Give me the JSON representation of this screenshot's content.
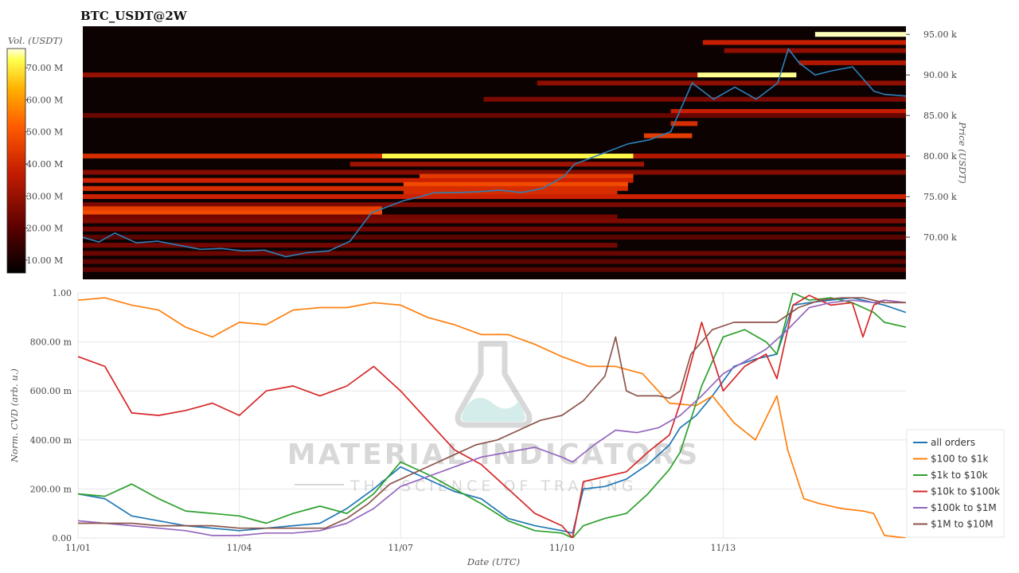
{
  "chart_data": [
    {
      "type": "heatmap",
      "title": "BTC_USDT@2W",
      "colorbar": {
        "label": "Vol. (USDT)",
        "ticks": [
          "70.00 M",
          "60.00 M",
          "50.00 M",
          "40.00 M",
          "30.00 M",
          "20.00 M",
          "10.00 M"
        ],
        "tick_values": [
          70,
          60,
          50,
          40,
          30,
          20,
          10
        ],
        "range": [
          6,
          76
        ]
      },
      "ylabel": "Price (USDT)",
      "yticks": [
        "95.00 k",
        "90.00 k",
        "85.00 k",
        "80.00 k",
        "75.00 k",
        "70.00 k"
      ],
      "ytick_values": [
        95,
        90,
        85,
        80,
        75,
        70
      ],
      "ylim": [
        64.8,
        96.0
      ],
      "price_line": {
        "color": "#2c7fb8",
        "x": [
          0,
          0.3,
          0.6,
          1.0,
          1.4,
          1.8,
          2.2,
          2.6,
          3.0,
          3.4,
          3.8,
          4.2,
          4.6,
          5.0,
          5.4,
          5.8,
          6.0,
          6.2,
          6.6,
          7.0,
          7.4,
          7.8,
          8.2,
          8.6,
          9.0,
          9.2,
          9.4,
          9.8,
          10.2,
          10.6,
          11.0,
          11.2,
          11.4,
          11.6,
          11.8,
          12.2,
          12.6,
          13.0,
          13.2,
          13.4,
          13.7,
          14.0,
          14.4,
          14.8,
          15.0,
          15.4
        ],
        "y": [
          70.0,
          69.4,
          70.5,
          69.3,
          69.5,
          69.0,
          68.5,
          68.6,
          68.3,
          68.4,
          67.6,
          68.1,
          68.3,
          69.5,
          73.0,
          74.0,
          74.5,
          74.8,
          75.5,
          75.5,
          75.6,
          75.8,
          75.5,
          76.0,
          77.5,
          79.0,
          79.5,
          80.5,
          81.5,
          82.0,
          83.0,
          86.0,
          89.0,
          88.0,
          87.0,
          88.5,
          87.0,
          89.0,
          93.2,
          91.5,
          90.0,
          90.5,
          91.0,
          88.0,
          87.6,
          87.4
        ]
      },
      "liquidity_bands": [
        {
          "price": 95.0,
          "x0": 13.7,
          "x1": 15.4,
          "intensity": 0.98
        },
        {
          "price": 94.0,
          "x0": 11.6,
          "x1": 15.4,
          "intensity": 0.45
        },
        {
          "price": 93.0,
          "x0": 12.0,
          "x1": 15.4,
          "intensity": 0.32
        },
        {
          "price": 91.5,
          "x0": 13.4,
          "x1": 15.4,
          "intensity": 0.4
        },
        {
          "price": 90.0,
          "x0": 0.0,
          "x1": 11.5,
          "intensity": 0.34
        },
        {
          "price": 90.0,
          "x0": 11.5,
          "x1": 13.35,
          "intensity": 0.96
        },
        {
          "price": 89.0,
          "x0": 8.5,
          "x1": 15.4,
          "intensity": 0.32
        },
        {
          "price": 87.0,
          "x0": 7.5,
          "x1": 15.4,
          "intensity": 0.28
        },
        {
          "price": 85.5,
          "x0": 11.0,
          "x1": 15.4,
          "intensity": 0.45
        },
        {
          "price": 85.0,
          "x0": 0.0,
          "x1": 15.4,
          "intensity": 0.24
        },
        {
          "price": 84.0,
          "x0": 11.0,
          "x1": 11.5,
          "intensity": 0.5
        },
        {
          "price": 82.5,
          "x0": 10.5,
          "x1": 11.4,
          "intensity": 0.55
        },
        {
          "price": 80.0,
          "x0": 0.0,
          "x1": 5.6,
          "intensity": 0.5
        },
        {
          "price": 80.0,
          "x0": 5.6,
          "x1": 10.3,
          "intensity": 0.92
        },
        {
          "price": 80.0,
          "x0": 10.3,
          "x1": 15.4,
          "intensity": 0.4
        },
        {
          "price": 79.0,
          "x0": 5.0,
          "x1": 10.5,
          "intensity": 0.36
        },
        {
          "price": 78.0,
          "x0": 0.0,
          "x1": 15.4,
          "intensity": 0.3
        },
        {
          "price": 77.5,
          "x0": 6.3,
          "x1": 10.3,
          "intensity": 0.55
        },
        {
          "price": 77.0,
          "x0": 0.0,
          "x1": 10.3,
          "intensity": 0.46
        },
        {
          "price": 76.5,
          "x0": 6.0,
          "x1": 10.2,
          "intensity": 0.6
        },
        {
          "price": 76.0,
          "x0": 0.0,
          "x1": 10.2,
          "intensity": 0.5
        },
        {
          "price": 75.5,
          "x0": 6.0,
          "x1": 10.0,
          "intensity": 0.5
        },
        {
          "price": 75.0,
          "x0": 0.0,
          "x1": 15.4,
          "intensity": 0.46
        },
        {
          "price": 74.0,
          "x0": 0.0,
          "x1": 15.4,
          "intensity": 0.28
        },
        {
          "price": 73.5,
          "x0": 0.0,
          "x1": 5.6,
          "intensity": 0.56
        },
        {
          "price": 73.0,
          "x0": 0.0,
          "x1": 5.6,
          "intensity": 0.6
        },
        {
          "price": 72.5,
          "x0": 0.0,
          "x1": 10.0,
          "intensity": 0.26
        },
        {
          "price": 72.0,
          "x0": 0.0,
          "x1": 15.4,
          "intensity": 0.28
        },
        {
          "price": 71.0,
          "x0": 0.0,
          "x1": 15.4,
          "intensity": 0.26
        },
        {
          "price": 70.0,
          "x0": 0.0,
          "x1": 15.4,
          "intensity": 0.2
        },
        {
          "price": 69.0,
          "x0": 0.0,
          "x1": 10.0,
          "intensity": 0.26
        },
        {
          "price": 68.0,
          "x0": 0.0,
          "x1": 15.4,
          "intensity": 0.24
        },
        {
          "price": 67.0,
          "x0": 0.0,
          "x1": 15.4,
          "intensity": 0.2
        },
        {
          "price": 66.0,
          "x0": 0.0,
          "x1": 15.4,
          "intensity": 0.2
        }
      ]
    },
    {
      "type": "line",
      "xlabel": "Date (UTC)",
      "ylabel": "Norm. CVD (arb. u.)",
      "xticks": [
        "11/01",
        "11/04",
        "11/07",
        "11/10",
        "11/13"
      ],
      "xtick_values": [
        0,
        3,
        6,
        9,
        12
      ],
      "xlim": [
        0,
        15.4
      ],
      "yticks": [
        "1.00",
        "800.00 m",
        "600.00 m",
        "400.00 m",
        "200.00 m",
        "0.00"
      ],
      "ytick_values": [
        1.0,
        0.8,
        0.6,
        0.4,
        0.2,
        0.0
      ],
      "ylim": [
        0,
        1
      ],
      "series": [
        {
          "name": "all orders",
          "color": "#1f77b4",
          "x": [
            0,
            0.5,
            1.0,
            1.5,
            2.0,
            2.5,
            3.0,
            3.5,
            4.0,
            4.5,
            5.0,
            5.5,
            6.0,
            6.5,
            7.0,
            7.5,
            8.0,
            8.5,
            9.0,
            9.2,
            9.4,
            9.8,
            10.2,
            10.6,
            11.0,
            11.2,
            11.5,
            11.8,
            12.2,
            12.6,
            13.0,
            13.3,
            13.6,
            14.0,
            14.4,
            14.8,
            15.0,
            15.4
          ],
          "y": [
            0.18,
            0.16,
            0.09,
            0.07,
            0.05,
            0.04,
            0.03,
            0.04,
            0.05,
            0.06,
            0.12,
            0.2,
            0.29,
            0.24,
            0.19,
            0.16,
            0.08,
            0.05,
            0.03,
            0.02,
            0.2,
            0.21,
            0.24,
            0.3,
            0.38,
            0.45,
            0.5,
            0.58,
            0.7,
            0.73,
            0.75,
            0.95,
            0.96,
            0.97,
            0.98,
            0.96,
            0.95,
            0.92
          ]
        },
        {
          "name": "$100 to $1k",
          "color": "#ff7f0e",
          "x": [
            0,
            0.5,
            1.0,
            1.5,
            2.0,
            2.5,
            3.0,
            3.5,
            4.0,
            4.5,
            5.0,
            5.5,
            6.0,
            6.5,
            7.0,
            7.5,
            8.0,
            8.5,
            9.0,
            9.5,
            10.0,
            10.5,
            11.0,
            11.5,
            11.8,
            12.2,
            12.6,
            13.0,
            13.2,
            13.5,
            13.8,
            14.2,
            14.6,
            14.8,
            15.0,
            15.4
          ],
          "y": [
            0.97,
            0.98,
            0.95,
            0.93,
            0.86,
            0.82,
            0.88,
            0.87,
            0.93,
            0.94,
            0.94,
            0.96,
            0.95,
            0.9,
            0.87,
            0.83,
            0.83,
            0.79,
            0.74,
            0.7,
            0.7,
            0.67,
            0.55,
            0.54,
            0.58,
            0.47,
            0.4,
            0.58,
            0.36,
            0.16,
            0.14,
            0.12,
            0.11,
            0.1,
            0.01,
            0.0
          ]
        },
        {
          "name": "$1k to $10k",
          "color": "#2ca02c",
          "x": [
            0,
            0.5,
            1.0,
            1.5,
            2.0,
            2.5,
            3.0,
            3.5,
            4.0,
            4.5,
            5.0,
            5.5,
            6.0,
            6.5,
            7.0,
            7.5,
            8.0,
            8.5,
            9.0,
            9.2,
            9.4,
            9.8,
            10.2,
            10.6,
            11.0,
            11.2,
            11.6,
            12.0,
            12.4,
            12.8,
            13.0,
            13.3,
            13.6,
            14.0,
            14.4,
            14.8,
            15.0,
            15.4
          ],
          "y": [
            0.18,
            0.17,
            0.22,
            0.16,
            0.11,
            0.1,
            0.09,
            0.06,
            0.1,
            0.13,
            0.1,
            0.18,
            0.31,
            0.26,
            0.2,
            0.14,
            0.07,
            0.03,
            0.02,
            0.0,
            0.05,
            0.08,
            0.1,
            0.18,
            0.28,
            0.35,
            0.62,
            0.82,
            0.85,
            0.8,
            0.75,
            1.0,
            0.97,
            0.98,
            0.96,
            0.92,
            0.88,
            0.86
          ]
        },
        {
          "name": "$10k to $100k",
          "color": "#d62728",
          "x": [
            0,
            0.5,
            1.0,
            1.5,
            2.0,
            2.5,
            3.0,
            3.5,
            4.0,
            4.5,
            5.0,
            5.5,
            6.0,
            6.5,
            7.0,
            7.5,
            8.0,
            8.5,
            9.0,
            9.2,
            9.4,
            9.8,
            10.2,
            10.6,
            11.0,
            11.2,
            11.6,
            12.0,
            12.4,
            12.8,
            13.0,
            13.3,
            13.6,
            14.0,
            14.4,
            14.6,
            14.8,
            15.0,
            15.4
          ],
          "y": [
            0.74,
            0.7,
            0.51,
            0.5,
            0.52,
            0.55,
            0.5,
            0.6,
            0.62,
            0.58,
            0.62,
            0.7,
            0.6,
            0.48,
            0.36,
            0.3,
            0.2,
            0.1,
            0.05,
            0.0,
            0.23,
            0.25,
            0.27,
            0.35,
            0.42,
            0.55,
            0.88,
            0.6,
            0.7,
            0.75,
            0.65,
            0.95,
            0.99,
            0.95,
            0.96,
            0.82,
            0.95,
            0.97,
            0.96
          ]
        },
        {
          "name": "$100k to $1M",
          "color": "#9467bd",
          "x": [
            0,
            0.5,
            1.0,
            1.5,
            2.0,
            2.5,
            3.0,
            3.5,
            4.0,
            4.5,
            5.0,
            5.5,
            6.0,
            6.5,
            7.0,
            7.5,
            8.0,
            8.5,
            9.0,
            9.2,
            9.6,
            10.0,
            10.4,
            10.8,
            11.2,
            11.6,
            12.0,
            12.4,
            12.8,
            13.2,
            13.6,
            14.0,
            14.4,
            14.8,
            15.0,
            15.4
          ],
          "y": [
            0.07,
            0.06,
            0.05,
            0.04,
            0.03,
            0.01,
            0.01,
            0.02,
            0.02,
            0.03,
            0.06,
            0.12,
            0.21,
            0.25,
            0.29,
            0.33,
            0.35,
            0.37,
            0.33,
            0.31,
            0.38,
            0.44,
            0.43,
            0.45,
            0.5,
            0.58,
            0.67,
            0.72,
            0.77,
            0.85,
            0.94,
            0.96,
            0.97,
            0.96,
            0.97,
            0.96
          ]
        },
        {
          "name": "$1M to $10M",
          "color": "#8c564b",
          "x": [
            0,
            0.5,
            1.0,
            1.5,
            2.0,
            2.5,
            3.0,
            3.4,
            3.8,
            4.2,
            4.6,
            5.0,
            5.4,
            5.8,
            6.2,
            6.6,
            7.0,
            7.4,
            7.8,
            8.2,
            8.6,
            9.0,
            9.4,
            9.8,
            10.0,
            10.2,
            10.4,
            10.8,
            11.0,
            11.2,
            11.4,
            11.8,
            12.2,
            12.6,
            13.0,
            13.4,
            13.8,
            14.2,
            14.6,
            15.0,
            15.4
          ],
          "y": [
            0.06,
            0.06,
            0.06,
            0.05,
            0.05,
            0.05,
            0.04,
            0.04,
            0.04,
            0.04,
            0.04,
            0.08,
            0.14,
            0.22,
            0.26,
            0.3,
            0.34,
            0.38,
            0.4,
            0.44,
            0.48,
            0.5,
            0.56,
            0.66,
            0.82,
            0.6,
            0.58,
            0.58,
            0.57,
            0.6,
            0.75,
            0.85,
            0.88,
            0.88,
            0.88,
            0.94,
            0.97,
            0.98,
            0.98,
            0.96,
            0.96
          ]
        }
      ],
      "legend_position": "right"
    }
  ],
  "watermark": {
    "brand": "MATERIAL INDICATORS",
    "tagline": "THE SCIENCE OF TRADING"
  }
}
